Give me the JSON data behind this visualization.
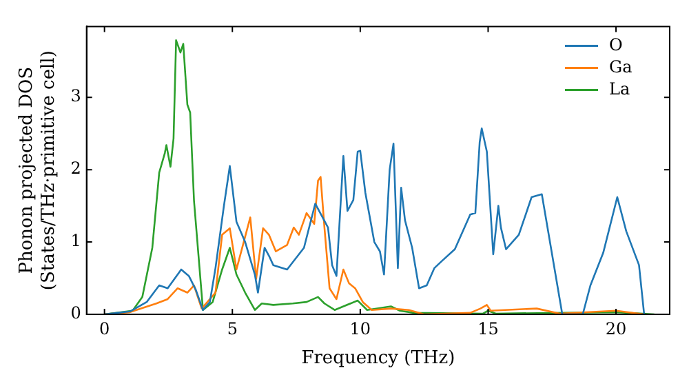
{
  "chart_data": {
    "type": "line",
    "xlabel": "Frequency (THz)",
    "ylabel": "Phonon projected DOS\n(States/THz·primitive cell)",
    "xlim": [
      -0.7,
      22.1
    ],
    "xticks": [
      0,
      5,
      10,
      15,
      20
    ],
    "ylim": [
      0,
      3.98
    ],
    "yticks": [
      0,
      1,
      2,
      3
    ],
    "legend": "top right",
    "marker": "none",
    "line_style": "solid",
    "series": [
      {
        "name": "O",
        "color": "#1f77b4",
        "x": [
          0,
          1,
          1.65,
          2.14,
          2.47,
          2.86,
          3.0,
          3.3,
          3.57,
          3.85,
          4.12,
          4.34,
          4.67,
          4.9,
          5.16,
          5.5,
          5.88,
          6.0,
          6.26,
          6.43,
          6.6,
          7.14,
          7.8,
          8.24,
          8.74,
          8.9,
          9.07,
          9.34,
          9.5,
          9.73,
          9.9,
          10.0,
          10.2,
          10.55,
          10.77,
          10.93,
          11.15,
          11.3,
          11.47,
          11.6,
          11.75,
          12.03,
          12.3,
          12.6,
          12.9,
          13.2,
          13.7,
          14.3,
          14.5,
          14.67,
          14.75,
          14.95,
          15.2,
          15.4,
          15.5,
          15.7,
          16.2,
          16.7,
          17.1,
          17.9,
          18.7,
          19.0,
          19.5,
          20.05,
          20.4,
          20.9,
          21.1
        ],
        "values": [
          0,
          0.04,
          0.17,
          0.4,
          0.36,
          0.55,
          0.62,
          0.53,
          0.34,
          0.06,
          0.17,
          0.64,
          1.5,
          2.05,
          1.28,
          1.0,
          0.55,
          0.3,
          0.92,
          0.81,
          0.68,
          0.62,
          0.92,
          1.53,
          1.2,
          0.68,
          0.53,
          2.19,
          1.43,
          1.58,
          2.25,
          2.26,
          1.68,
          1.0,
          0.87,
          0.55,
          2.0,
          2.36,
          0.64,
          1.75,
          1.3,
          0.92,
          0.36,
          0.4,
          0.64,
          0.74,
          0.9,
          1.38,
          1.4,
          2.38,
          2.57,
          2.25,
          0.83,
          1.5,
          1.2,
          0.9,
          1.1,
          1.62,
          1.66,
          0,
          0,
          0.4,
          0.85,
          1.62,
          1.15,
          0.68,
          0
        ]
      },
      {
        "name": "Ga",
        "color": "#ff7f0e",
        "x": [
          0,
          1,
          2.03,
          2.47,
          2.86,
          3.24,
          3.5,
          3.8,
          4.34,
          4.6,
          4.9,
          5.16,
          5.7,
          5.93,
          6.2,
          6.43,
          6.7,
          7.14,
          7.4,
          7.6,
          7.9,
          8.2,
          8.35,
          8.45,
          8.6,
          8.8,
          9.07,
          9.34,
          9.56,
          9.8,
          10.1,
          10.45,
          11.2,
          11.9,
          12.5,
          14.3,
          14.7,
          14.95,
          15.1,
          16.9,
          17.8,
          20,
          21.1
        ],
        "values": [
          0,
          0.03,
          0.15,
          0.21,
          0.36,
          0.3,
          0.4,
          0.08,
          0.3,
          1.1,
          1.19,
          0.62,
          1.34,
          0.49,
          1.19,
          1.1,
          0.87,
          0.96,
          1.2,
          1.1,
          1.4,
          1.25,
          1.85,
          1.9,
          1.2,
          0.36,
          0.21,
          0.62,
          0.43,
          0.36,
          0.17,
          0.06,
          0.08,
          0.06,
          0,
          0.02,
          0.08,
          0.13,
          0.05,
          0.08,
          0.01,
          0.05,
          0
        ]
      },
      {
        "name": "La",
        "color": "#2ca02c",
        "x": [
          0,
          1.1,
          1.48,
          1.87,
          2.14,
          2.36,
          2.42,
          2.58,
          2.7,
          2.8,
          2.97,
          3.08,
          3.24,
          3.35,
          3.5,
          3.85,
          4.23,
          4.6,
          4.9,
          5.16,
          5.5,
          5.88,
          6.15,
          6.6,
          7.36,
          7.9,
          8.35,
          8.6,
          9.0,
          9.34,
          9.9,
          10.27,
          11.2,
          11.55,
          12.1,
          14.8,
          15.0,
          15.3,
          20,
          21.5
        ],
        "values": [
          0,
          0.05,
          0.24,
          0.92,
          1.96,
          2.23,
          2.34,
          2.04,
          2.43,
          3.79,
          3.62,
          3.74,
          2.9,
          2.79,
          1.57,
          0.06,
          0.17,
          0.62,
          0.92,
          0.55,
          0.3,
          0.06,
          0.15,
          0.13,
          0.15,
          0.17,
          0.24,
          0.15,
          0.06,
          0.11,
          0.19,
          0.06,
          0.11,
          0.05,
          0.02,
          0.01,
          0.05,
          0.01,
          0.03,
          0
        ]
      }
    ]
  }
}
